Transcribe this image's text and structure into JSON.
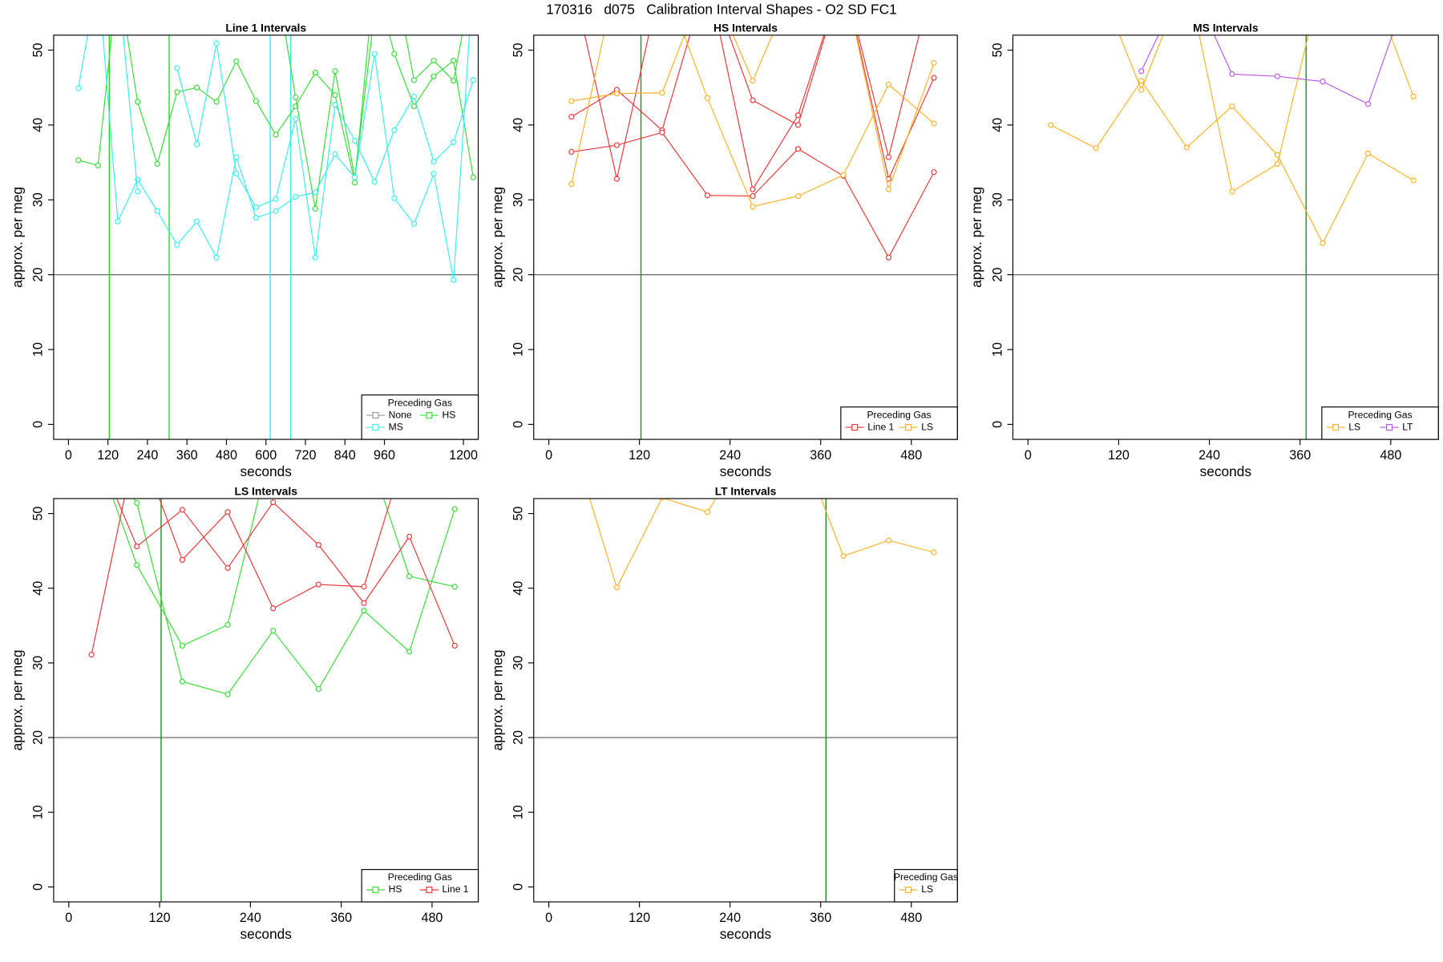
{
  "title": "170316   d075   Calibration Interval Shapes - O2 SD FC1",
  "chart_data": [
    {
      "type": "line",
      "title": "Line 1 Intervals",
      "x_label": "seconds",
      "y_label": "approx. per meg",
      "x": [
        30,
        90,
        150,
        210,
        270,
        330,
        390,
        450,
        510,
        570,
        630,
        690,
        750,
        810,
        870,
        930,
        990,
        1050,
        1110,
        1170,
        1230
      ],
      "xlim": [
        -45,
        1245
      ],
      "ylim": [
        -2,
        52
      ],
      "xticks": [
        0,
        120,
        240,
        360,
        480,
        600,
        720,
        840,
        960,
        1200
      ],
      "yticks": [
        0,
        10,
        20,
        30,
        40,
        50
      ],
      "hline": 20,
      "hline_color": "#555555",
      "vlines": [
        {
          "x": 124,
          "color": "#22dd22"
        },
        {
          "x": 306,
          "color": "#22dd22"
        },
        {
          "x": 613,
          "color": "#33eeee"
        },
        {
          "x": 675,
          "color": "#33eeee"
        }
      ],
      "legend": {
        "title": "Preceding Gas",
        "position": "bottomright"
      },
      "series": [
        {
          "name": "None",
          "color": "#999999",
          "lines": []
        },
        {
          "name": "HS",
          "color": "#33dd33",
          "lines": [
            [
              35.3,
              34.6,
              60,
              43.1,
              34.8,
              44.4,
              45.0,
              43.1,
              48.5,
              43.2,
              38.7,
              42.5,
              47.0,
              44.0,
              32.3,
              60,
              49.5,
              42.5,
              46.5,
              48.6,
              33.0
            ],
            [
              null,
              null,
              null,
              60,
              55,
              null,
              null,
              null,
              null,
              null,
              60,
              43.7,
              28.8,
              47.2,
              33.0,
              55,
              60,
              46.0,
              48.6,
              45.9,
              60
            ]
          ]
        },
        {
          "name": "MS",
          "color": "#33eeee",
          "lines": [
            [
              44.9,
              60,
              27.1,
              32.7,
              28.5,
              24.0,
              27.1,
              22.3,
              35.7,
              27.6,
              28.5,
              30.4,
              31.0,
              36.1,
              33.0,
              49.5,
              30.2,
              26.8,
              33.5,
              19.3,
              60
            ],
            [
              null,
              null,
              60,
              31.1,
              null,
              47.6,
              37.4,
              50.9,
              33.5,
              29.0,
              30.1,
              40.8,
              22.3,
              42.7,
              37.9,
              32.4,
              39.3,
              43.8,
              35.1,
              37.7,
              46.0
            ]
          ]
        }
      ]
    },
    {
      "type": "line",
      "title": "HS Intervals",
      "x_label": "seconds",
      "y_label": "approx. per meg",
      "x": [
        30,
        90,
        150,
        210,
        270,
        330,
        390,
        450,
        510
      ],
      "xlim": [
        -20,
        541
      ],
      "ylim": [
        -2,
        52
      ],
      "xticks": [
        0,
        120,
        240,
        360,
        480
      ],
      "yticks": [
        0,
        10,
        20,
        30,
        40,
        50
      ],
      "hline": 20,
      "hline_color": "#555555",
      "vlines": [
        {
          "x": 122,
          "color": "#228b22"
        }
      ],
      "legend": {
        "title": "Preceding Gas",
        "position": "bottomright"
      },
      "series": [
        {
          "name": "Line 1",
          "color": "#ee3333",
          "lines": [
            [
              41.1,
              44.7,
              39.3,
              60,
              43.3,
              40.0,
              60,
              32.8,
              46.3
            ],
            [
              36.4,
              37.3,
              39.0,
              30.6,
              30.5,
              36.8,
              33.2,
              22.3,
              33.7
            ],
            [
              60,
              32.8,
              60,
              60,
              31.4,
              41.3,
              60,
              35.7,
              60
            ]
          ]
        },
        {
          "name": "LS",
          "color": "#ffb020",
          "lines": [
            [
              43.2,
              44.2,
              44.3,
              60,
              45.9,
              60,
              60,
              31.4,
              48.3
            ],
            [
              32.1,
              60,
              60,
              43.6,
              29.1,
              30.5,
              33.3,
              45.4,
              40.2
            ]
          ]
        }
      ]
    },
    {
      "type": "line",
      "title": "MS Intervals",
      "x_label": "seconds",
      "y_label": "approx. per meg",
      "x": [
        30,
        90,
        150,
        210,
        270,
        330,
        390,
        450,
        510
      ],
      "xlim": [
        -20,
        543
      ],
      "ylim": [
        -2,
        52
      ],
      "xticks": [
        0,
        120,
        240,
        360,
        480
      ],
      "yticks": [
        0,
        10,
        20,
        30,
        40,
        50
      ],
      "hline": 20,
      "hline_color": "#555555",
      "vlines": [
        {
          "x": 368,
          "color": "#228b22"
        }
      ],
      "legend": {
        "title": "Preceding Gas",
        "position": "bottomright"
      },
      "series": [
        {
          "name": "LS",
          "color": "#ffb020",
          "lines": [
            [
              40.0,
              36.9,
              45.9,
              37.0,
              42.5,
              36.0,
              24.2,
              36.2,
              32.6
            ],
            [
              null,
              60,
              44.7,
              60,
              31.1,
              34.8,
              60,
              60,
              43.8
            ]
          ]
        },
        {
          "name": "LT",
          "color": "#bb55ee",
          "lines": [
            [
              null,
              null,
              47.2,
              60,
              46.8,
              46.5,
              45.8,
              42.8,
              60
            ]
          ]
        }
      ]
    },
    {
      "type": "line",
      "title": "LS Intervals",
      "x_label": "seconds",
      "y_label": "approx. per meg",
      "x": [
        30,
        90,
        150,
        210,
        270,
        330,
        390,
        450,
        510
      ],
      "xlim": [
        -20,
        541
      ],
      "ylim": [
        -2,
        52
      ],
      "xticks": [
        0,
        120,
        240,
        360,
        480
      ],
      "yticks": [
        0,
        10,
        20,
        30,
        40,
        50
      ],
      "hline": 20,
      "hline_color": "#555555",
      "vlines": [
        {
          "x": 122,
          "color": "#228b22"
        }
      ],
      "legend": {
        "title": "Preceding Gas",
        "position": "bottomright"
      },
      "series": [
        {
          "name": "HS",
          "color": "#33dd33",
          "lines": [
            [
              60,
              43.1,
              32.3,
              35.1,
              60,
              60,
              60,
              41.6,
              40.2
            ],
            [
              60,
              51.4,
              27.5,
              25.8,
              34.3,
              26.5,
              37.0,
              31.5,
              50.6
            ]
          ]
        },
        {
          "name": "Line 1",
          "color": "#ee3333",
          "lines": [
            [
              31.1,
              60,
              43.8,
              50.2,
              37.3,
              40.5,
              40.2,
              60,
              null
            ],
            [
              60,
              45.6,
              50.5,
              42.7,
              51.5,
              45.8,
              38.0,
              46.9,
              32.3
            ]
          ]
        }
      ]
    },
    {
      "type": "line",
      "title": "LT Intervals",
      "x_label": "seconds",
      "y_label": "approx. per meg",
      "x": [
        30,
        90,
        150,
        210,
        270,
        330,
        390,
        450,
        510
      ],
      "xlim": [
        -20,
        541
      ],
      "ylim": [
        -2,
        52
      ],
      "xticks": [
        0,
        120,
        240,
        360,
        480
      ],
      "yticks": [
        0,
        10,
        20,
        30,
        40,
        50
      ],
      "hline": 20,
      "hline_color": "#555555",
      "vlines": [
        {
          "x": 367,
          "color": "#228b22"
        }
      ],
      "legend": {
        "title": "Preceding Gas",
        "position": "bottomright"
      },
      "series": [
        {
          "name": "LS",
          "color": "#ffb020",
          "lines": [
            [
              60,
              40.1,
              52.1,
              50.2,
              60,
              60,
              44.3,
              46.4,
              44.8
            ]
          ]
        }
      ]
    }
  ]
}
